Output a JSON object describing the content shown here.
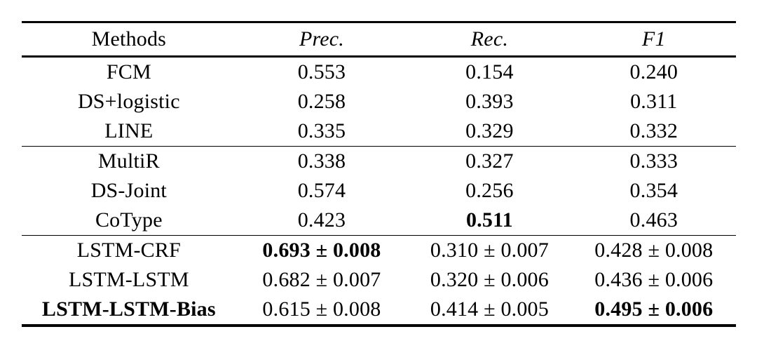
{
  "page": {
    "background_color": "#ffffff",
    "text_color": "#000000"
  },
  "table": {
    "columns": [
      {
        "label": "Methods",
        "italic": false
      },
      {
        "label": "Prec.",
        "italic": true
      },
      {
        "label": "Rec.",
        "italic": true
      },
      {
        "label": "F1",
        "italic": true
      }
    ],
    "groups": [
      {
        "rows": [
          {
            "method": {
              "text": "FCM",
              "bold": false
            },
            "cells": [
              {
                "text": "0.553",
                "bold": false
              },
              {
                "text": "0.154",
                "bold": false
              },
              {
                "text": "0.240",
                "bold": false
              }
            ]
          },
          {
            "method": {
              "text": "DS+logistic",
              "bold": false
            },
            "cells": [
              {
                "text": "0.258",
                "bold": false
              },
              {
                "text": "0.393",
                "bold": false
              },
              {
                "text": "0.311",
                "bold": false
              }
            ]
          },
          {
            "method": {
              "text": "LINE",
              "bold": false
            },
            "cells": [
              {
                "text": "0.335",
                "bold": false
              },
              {
                "text": "0.329",
                "bold": false
              },
              {
                "text": "0.332",
                "bold": false
              }
            ]
          }
        ]
      },
      {
        "rows": [
          {
            "method": {
              "text": "MultiR",
              "bold": false
            },
            "cells": [
              {
                "text": "0.338",
                "bold": false
              },
              {
                "text": "0.327",
                "bold": false
              },
              {
                "text": "0.333",
                "bold": false
              }
            ]
          },
          {
            "method": {
              "text": "DS-Joint",
              "bold": false
            },
            "cells": [
              {
                "text": "0.574",
                "bold": false
              },
              {
                "text": "0.256",
                "bold": false
              },
              {
                "text": "0.354",
                "bold": false
              }
            ]
          },
          {
            "method": {
              "text": "CoType",
              "bold": false
            },
            "cells": [
              {
                "text": "0.423",
                "bold": false
              },
              {
                "text": "0.511",
                "bold": true
              },
              {
                "text": "0.463",
                "bold": false
              }
            ]
          }
        ]
      },
      {
        "rows": [
          {
            "method": {
              "text": "LSTM-CRF",
              "bold": false
            },
            "cells": [
              {
                "text": "0.693 ± 0.008",
                "bold": true
              },
              {
                "text": "0.310 ± 0.007",
                "bold": false
              },
              {
                "text": "0.428 ± 0.008",
                "bold": false
              }
            ]
          },
          {
            "method": {
              "text": "LSTM-LSTM",
              "bold": false
            },
            "cells": [
              {
                "text": "0.682 ± 0.007",
                "bold": false
              },
              {
                "text": "0.320 ± 0.006",
                "bold": false
              },
              {
                "text": "0.436 ± 0.006",
                "bold": false
              }
            ]
          },
          {
            "method": {
              "text": "LSTM-LSTM-Bias",
              "bold": true
            },
            "cells": [
              {
                "text": "0.615 ± 0.008",
                "bold": false
              },
              {
                "text": "0.414 ± 0.005",
                "bold": false
              },
              {
                "text": "0.495 ± 0.006",
                "bold": true
              }
            ]
          }
        ]
      }
    ]
  }
}
